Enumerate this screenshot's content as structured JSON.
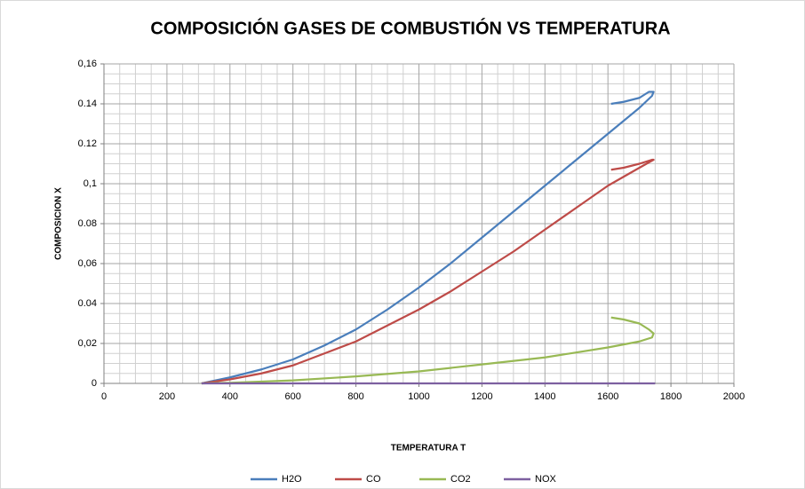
{
  "chart_data": {
    "type": "line",
    "title": "COMPOSICIÓN GASES DE COMBUSTIÓN VS TEMPERATURA",
    "x_label": "TEMPERATURA T",
    "y_label": "COMPOSICION X",
    "xlim": [
      0,
      2000
    ],
    "xticks": [
      0,
      200,
      400,
      600,
      800,
      1000,
      1200,
      1400,
      1600,
      1800,
      2000
    ],
    "ylim": [
      0,
      0.16
    ],
    "yticks": [
      0,
      {
        "value": 0.02,
        "label": "0,02"
      },
      0.04,
      {
        "value": 0.06,
        "label": "0,06"
      },
      0.08,
      {
        "value": 0.1,
        "label": "0,1"
      },
      0.12,
      0.14,
      {
        "value": 0.16,
        "label": "0,16"
      }
    ],
    "grid": true,
    "legend": "bottom",
    "series": [
      {
        "name": "H2O",
        "color": "#4a7ebb",
        "x": [
          310,
          400,
          500,
          600,
          700,
          800,
          900,
          1000,
          1100,
          1200,
          1300,
          1400,
          1500,
          1600,
          1700,
          1740,
          1745,
          1730,
          1700,
          1650,
          1610
        ],
        "values": [
          0,
          0.003,
          0.007,
          0.012,
          0.019,
          0.027,
          0.037,
          0.048,
          0.06,
          0.073,
          0.086,
          0.099,
          0.112,
          0.125,
          0.138,
          0.144,
          0.146,
          0.146,
          0.143,
          0.141,
          0.14
        ]
      },
      {
        "name": "CO",
        "color": "#be4b48",
        "x": [
          310,
          400,
          500,
          600,
          700,
          800,
          900,
          1000,
          1100,
          1200,
          1300,
          1400,
          1500,
          1600,
          1700,
          1745,
          1740,
          1700,
          1650,
          1610
        ],
        "values": [
          0,
          0.002,
          0.005,
          0.009,
          0.015,
          0.021,
          0.029,
          0.037,
          0.046,
          0.056,
          0.066,
          0.077,
          0.088,
          0.099,
          0.108,
          0.112,
          0.112,
          0.11,
          0.108,
          0.107
        ]
      },
      {
        "name": "CO2",
        "color": "#98b954",
        "x": [
          310,
          400,
          600,
          800,
          1000,
          1200,
          1400,
          1600,
          1700,
          1740,
          1745,
          1730,
          1700,
          1650,
          1610
        ],
        "values": [
          0,
          0.0003,
          0.0015,
          0.0035,
          0.006,
          0.0095,
          0.013,
          0.018,
          0.021,
          0.023,
          0.025,
          0.027,
          0.03,
          0.032,
          0.033
        ]
      },
      {
        "name": "NOX",
        "color": "#7d60a0",
        "x": [
          310,
          1750
        ],
        "values": [
          0,
          0
        ]
      }
    ]
  }
}
